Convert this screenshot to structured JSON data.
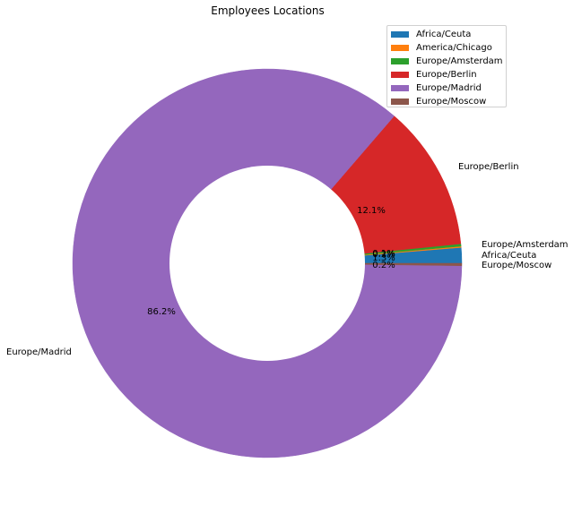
{
  "chart_data": {
    "type": "pie",
    "title": "Employees Locations",
    "donut": true,
    "legend_position": "top-right",
    "slices": [
      {
        "label": "Africa/Ceuta",
        "value": 1.3,
        "pct_label": "1.3%",
        "color": "#1f77b4"
      },
      {
        "label": "America/Chicago",
        "value": 0.1,
        "pct_label": "0.1%",
        "color": "#ff7f0e"
      },
      {
        "label": "Europe/Amsterdam",
        "value": 0.2,
        "pct_label": "0.2%",
        "color": "#2ca02c"
      },
      {
        "label": "Europe/Berlin",
        "value": 12.1,
        "pct_label": "12.1%",
        "color": "#d62728"
      },
      {
        "label": "Europe/Madrid",
        "value": 86.2,
        "pct_label": "86.2%",
        "color": "#9467bd"
      },
      {
        "label": "Europe/Moscow",
        "value": 0.2,
        "pct_label": "0.2%",
        "color": "#8c564b"
      }
    ]
  }
}
